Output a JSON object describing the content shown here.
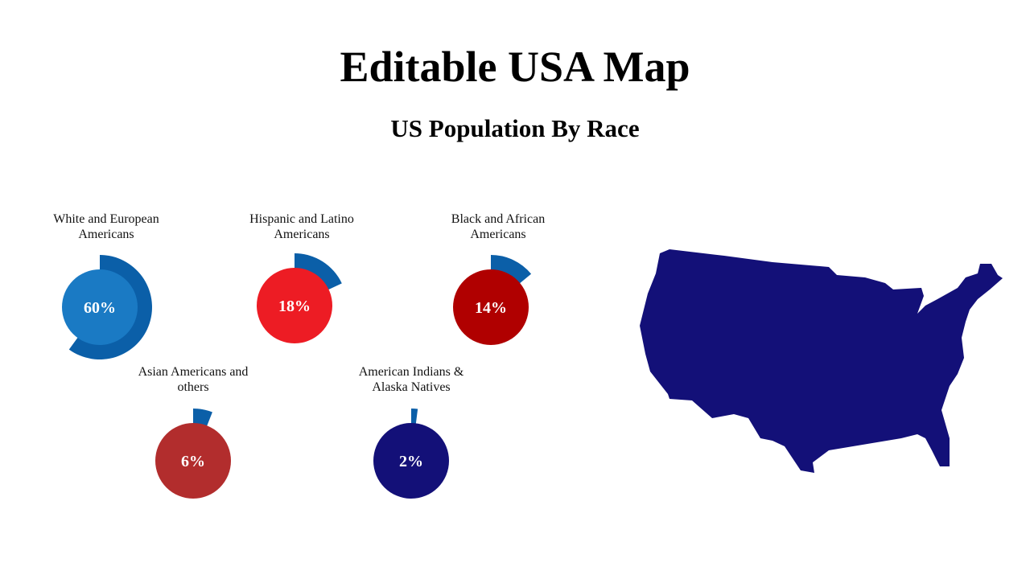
{
  "title": "Editable USA Map",
  "subtitle": "US Population By Race",
  "chart_data": [
    {
      "type": "donut",
      "title": "White and European Americans",
      "values": [
        60
      ],
      "value_labels": [
        "60%"
      ],
      "color": "#1a7ac4",
      "ring_color": "#0b5fa8"
    },
    {
      "type": "donut",
      "title": "Hispanic and Latino Americans",
      "values": [
        18
      ],
      "value_labels": [
        "18%"
      ],
      "color": "#ed1c24",
      "ring_color": "#0b5fa8"
    },
    {
      "type": "donut",
      "title": "Black and African Americans",
      "values": [
        14
      ],
      "value_labels": [
        "14%"
      ],
      "color": "#b00000",
      "ring_color": "#0b5fa8"
    },
    {
      "type": "donut",
      "title": "Asian Americans and others",
      "values": [
        6
      ],
      "value_labels": [
        "6%"
      ],
      "color": "#b22d2d",
      "ring_color": "#0b5fa8"
    },
    {
      "type": "donut",
      "title": "American Indians & Alaska Natives",
      "values": [
        2
      ],
      "value_labels": [
        "2%"
      ],
      "color": "#131078",
      "ring_color": "#0b5fa8"
    }
  ]
}
